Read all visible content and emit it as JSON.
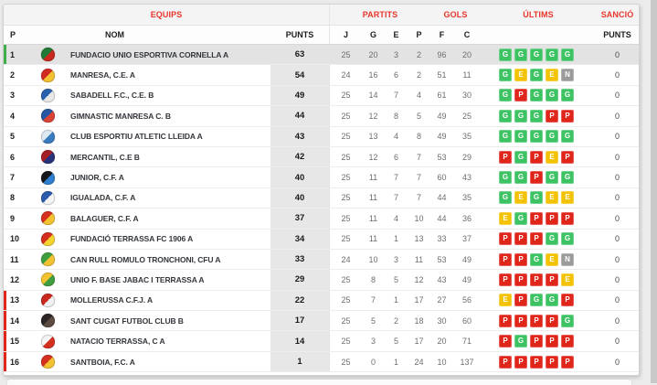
{
  "header": {
    "groups": {
      "equips": "EQUIPS",
      "partits": "PARTITS",
      "gols": "GOLS",
      "ultims": "ÚLTIMS",
      "sancio": "SANCIÓ"
    },
    "columns": {
      "pos": "P",
      "nom": "NOM",
      "punts": "PUNTS",
      "jugats": "J",
      "guanyats": "G",
      "empatats": "E",
      "perduts": "P",
      "favor": "F",
      "contra": "C",
      "sancio_punts": "PUNTS"
    }
  },
  "result_colors": {
    "G": "#3ec364",
    "E": "#f3c203",
    "P": "#e0251b",
    "N": "#9b9b9b"
  },
  "markers": {
    "promotion": "#3fae4b",
    "relegation": "#e0251b"
  },
  "rows": [
    {
      "pos": "1",
      "name": "FUNDACIO UNIO ESPORTIVA CORNELLA A",
      "punts": "63",
      "j": "25",
      "g": "20",
      "e": "3",
      "p": "2",
      "f": "96",
      "c": "20",
      "ultims": [
        "G",
        "G",
        "G",
        "G",
        "G"
      ],
      "sancio": "0",
      "marker": "promotion",
      "highlight": true,
      "crest": [
        "#1e7a34",
        "#c8281e"
      ]
    },
    {
      "pos": "2",
      "name": "MANRESA, C.E. A",
      "punts": "54",
      "j": "24",
      "g": "16",
      "e": "6",
      "p": "2",
      "f": "51",
      "c": "11",
      "ultims": [
        "G",
        "E",
        "G",
        "E",
        "N"
      ],
      "sancio": "0",
      "marker": null,
      "highlight": false,
      "crest": [
        "#d22b20",
        "#f2c230"
      ]
    },
    {
      "pos": "3",
      "name": "SABADELL F.C., C.E. B",
      "punts": "49",
      "j": "25",
      "g": "14",
      "e": "7",
      "p": "4",
      "f": "61",
      "c": "30",
      "ultims": [
        "G",
        "P",
        "G",
        "G",
        "G"
      ],
      "sancio": "0",
      "marker": null,
      "highlight": false,
      "crest": [
        "#2b62ae",
        "#e8e8e8"
      ]
    },
    {
      "pos": "4",
      "name": "GIMNASTIC MANRESA C. B",
      "punts": "44",
      "j": "25",
      "g": "12",
      "e": "8",
      "p": "5",
      "f": "49",
      "c": "25",
      "ultims": [
        "G",
        "G",
        "G",
        "P",
        "P"
      ],
      "sancio": "0",
      "marker": null,
      "highlight": false,
      "crest": [
        "#2456a5",
        "#d84336"
      ]
    },
    {
      "pos": "5",
      "name": "CLUB ESPORTIU ATLETIC LLEIDA A",
      "punts": "43",
      "j": "25",
      "g": "13",
      "e": "4",
      "p": "8",
      "f": "49",
      "c": "35",
      "ultims": [
        "G",
        "G",
        "G",
        "G",
        "G"
      ],
      "sancio": "0",
      "marker": null,
      "highlight": false,
      "crest": [
        "#dfe9f2",
        "#3a7abf"
      ]
    },
    {
      "pos": "6",
      "name": "MERCANTIL, C.E B",
      "punts": "42",
      "j": "25",
      "g": "12",
      "e": "6",
      "p": "7",
      "f": "53",
      "c": "29",
      "ultims": [
        "P",
        "G",
        "P",
        "E",
        "P"
      ],
      "sancio": "0",
      "marker": null,
      "highlight": false,
      "crest": [
        "#a31f24",
        "#27337a"
      ]
    },
    {
      "pos": "7",
      "name": "JUNIOR, C.F. A",
      "punts": "40",
      "j": "25",
      "g": "11",
      "e": "7",
      "p": "7",
      "f": "60",
      "c": "43",
      "ultims": [
        "G",
        "G",
        "P",
        "G",
        "G"
      ],
      "sancio": "0",
      "marker": null,
      "highlight": false,
      "crest": [
        "#14161a",
        "#2f7fd1"
      ]
    },
    {
      "pos": "8",
      "name": "IGUALADA, C.F. A",
      "punts": "40",
      "j": "25",
      "g": "11",
      "e": "7",
      "p": "7",
      "f": "44",
      "c": "35",
      "ultims": [
        "G",
        "E",
        "G",
        "E",
        "E"
      ],
      "sancio": "0",
      "marker": null,
      "highlight": false,
      "crest": [
        "#2a5caa",
        "#f5f5f5"
      ]
    },
    {
      "pos": "9",
      "name": "BALAGUER, C.F. A",
      "punts": "37",
      "j": "25",
      "g": "11",
      "e": "4",
      "p": "10",
      "f": "44",
      "c": "36",
      "ultims": [
        "E",
        "G",
        "P",
        "P",
        "P"
      ],
      "sancio": "0",
      "marker": null,
      "highlight": false,
      "crest": [
        "#d42f1f",
        "#f2c230"
      ]
    },
    {
      "pos": "10",
      "name": "FUNDACIÓ TERRASSA FC 1906 A",
      "punts": "34",
      "j": "25",
      "g": "11",
      "e": "1",
      "p": "13",
      "f": "33",
      "c": "37",
      "ultims": [
        "P",
        "P",
        "P",
        "G",
        "G"
      ],
      "sancio": "0",
      "marker": null,
      "highlight": false,
      "crest": [
        "#d42f1f",
        "#f5d432"
      ]
    },
    {
      "pos": "11",
      "name": "CAN RULL ROMULO TRONCHONI, CFU A",
      "punts": "33",
      "j": "24",
      "g": "10",
      "e": "3",
      "p": "11",
      "f": "53",
      "c": "49",
      "ultims": [
        "P",
        "P",
        "G",
        "E",
        "N"
      ],
      "sancio": "0",
      "marker": null,
      "highlight": false,
      "crest": [
        "#3f9e3f",
        "#f2c230"
      ]
    },
    {
      "pos": "12",
      "name": "UNIO F. BASE JABAC I TERRASSA A",
      "punts": "29",
      "j": "25",
      "g": "8",
      "e": "5",
      "p": "12",
      "f": "43",
      "c": "49",
      "ultims": [
        "P",
        "P",
        "P",
        "P",
        "E"
      ],
      "sancio": "0",
      "marker": null,
      "highlight": false,
      "crest": [
        "#f2c230",
        "#3f9e3f"
      ]
    },
    {
      "pos": "13",
      "name": "MOLLERUSSA C.F.J. A",
      "punts": "22",
      "j": "25",
      "g": "7",
      "e": "1",
      "p": "17",
      "f": "27",
      "c": "56",
      "ultims": [
        "E",
        "P",
        "G",
        "G",
        "P"
      ],
      "sancio": "0",
      "marker": "relegation",
      "highlight": false,
      "crest": [
        "#c8281e",
        "#f0f0f0"
      ]
    },
    {
      "pos": "14",
      "name": "SANT CUGAT FUTBOL CLUB B",
      "punts": "17",
      "j": "25",
      "g": "5",
      "e": "2",
      "p": "18",
      "f": "30",
      "c": "60",
      "ultims": [
        "P",
        "P",
        "P",
        "P",
        "G"
      ],
      "sancio": "0",
      "marker": "relegation",
      "highlight": false,
      "crest": [
        "#2b2523",
        "#5d4a42"
      ]
    },
    {
      "pos": "15",
      "name": "NATACIO TERRASSA, C A",
      "punts": "14",
      "j": "25",
      "g": "3",
      "e": "5",
      "p": "17",
      "f": "20",
      "c": "71",
      "ultims": [
        "P",
        "G",
        "P",
        "P",
        "P"
      ],
      "sancio": "0",
      "marker": "relegation",
      "highlight": false,
      "crest": [
        "#f5f5f5",
        "#d42f1f"
      ]
    },
    {
      "pos": "16",
      "name": "SANTBOIA, F.C. A",
      "punts": "1",
      "j": "25",
      "g": "0",
      "e": "1",
      "p": "24",
      "f": "10",
      "c": "137",
      "ultims": [
        "P",
        "P",
        "P",
        "P",
        "P"
      ],
      "sancio": "0",
      "marker": "relegation",
      "highlight": false,
      "crest": [
        "#d42f1f",
        "#f2c230"
      ]
    }
  ]
}
